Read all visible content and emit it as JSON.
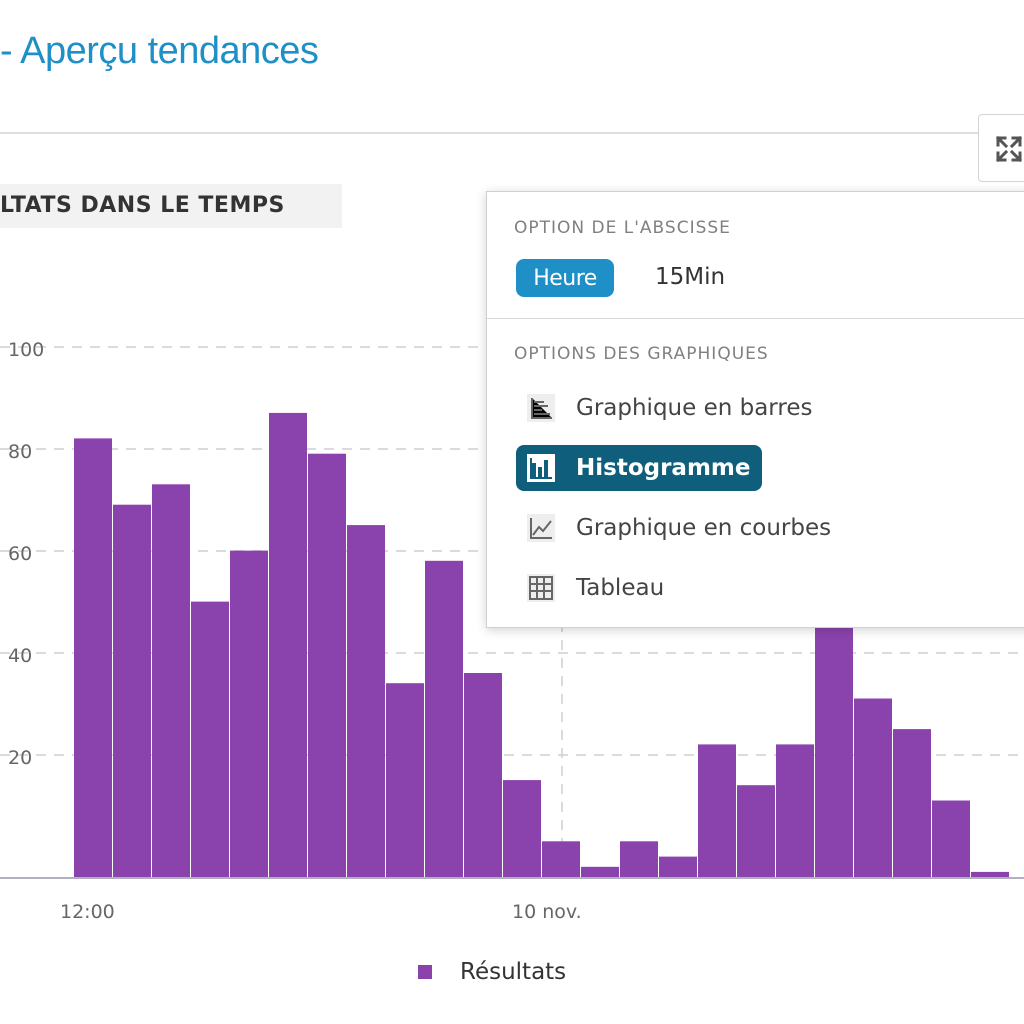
{
  "header": {
    "title": "- Aperçu tendances",
    "section_title": "LTATS DANS LE TEMPS"
  },
  "toolbar": {
    "expand_icon": "expand-arrows-icon"
  },
  "dropdown": {
    "axis_heading": "OPTION DE L'ABSCISSE",
    "axis_options": [
      {
        "label": "Heure",
        "selected": true
      },
      {
        "label": "15Min",
        "selected": false
      }
    ],
    "chart_heading": "OPTIONS DES GRAPHIQUES",
    "chart_options": [
      {
        "label": "Graphique en barres",
        "icon": "bar-chart-icon",
        "selected": false
      },
      {
        "label": "Histogramme",
        "icon": "histogram-icon",
        "selected": true
      },
      {
        "label": "Graphique en courbes",
        "icon": "line-chart-icon",
        "selected": false
      },
      {
        "label": "Tableau",
        "icon": "table-grid-icon",
        "selected": false
      }
    ]
  },
  "colors": {
    "accent": "#1f8fc8",
    "bar": "#8a43ad",
    "active_option": "#0f5f7c"
  },
  "chart_data": {
    "type": "bar",
    "y_ticks": [
      "100",
      "80",
      "60",
      "40",
      "20"
    ],
    "ylim": [
      0,
      100
    ],
    "x_ticks": [
      {
        "label": "12:00",
        "index": 0
      },
      {
        "label": "10 nov.",
        "index": 12
      }
    ],
    "values": [
      86,
      73,
      77,
      54,
      64,
      91,
      83,
      69,
      38,
      62,
      40,
      19,
      7,
      2,
      7,
      4,
      26,
      18,
      26,
      52,
      35,
      29,
      15,
      1
    ],
    "legend": [
      {
        "name": "Résultats",
        "color": "#8a43ad"
      }
    ],
    "grid": true,
    "legend_position": "bottom"
  }
}
